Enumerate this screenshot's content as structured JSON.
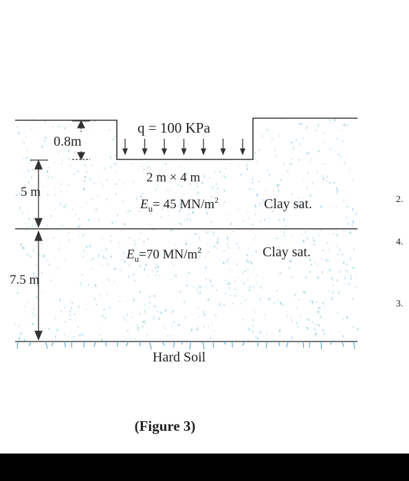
{
  "figure": {
    "caption": "(Figure 3)",
    "load_label": "q = 100 KPa",
    "embedment_depth": "0.8m",
    "footing_size": "2 m × 4 m",
    "layer1": {
      "thickness": "5 m",
      "modulus_prefix": "E",
      "modulus_sub": "u",
      "modulus_rest": "= 45  MN/m",
      "modulus_sup": "2",
      "soil": "Clay sat."
    },
    "layer2": {
      "thickness": "7.5 m",
      "modulus_prefix": "E",
      "modulus_sub": "u",
      "modulus_rest": "=70  MN/m",
      "modulus_sup": "2",
      "soil": "Clay sat."
    },
    "base_layer": "Hard Soil",
    "side_fragments": [
      "2.",
      "4.",
      "3."
    ]
  },
  "colors": {
    "speckle": "#9fd3e8",
    "line": "#333333",
    "hard_soil_marks": "#4aa6cc"
  }
}
